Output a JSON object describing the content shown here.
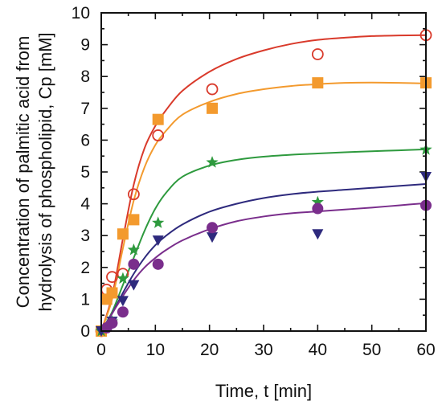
{
  "chart_data": {
    "type": "scatter",
    "title": "",
    "xlabel": "Time, t [min]",
    "ylabel_lines": [
      "Concentration of palmitic acid from",
      "hydrolysis of phospholipid, Cp [mM]"
    ],
    "xlim": [
      0,
      60
    ],
    "ylim": [
      0,
      10
    ],
    "xticks": [
      0,
      10,
      20,
      30,
      40,
      50,
      60
    ],
    "yticks": [
      0,
      1,
      2,
      3,
      4,
      5,
      6,
      7,
      8,
      9,
      10
    ],
    "grid": false,
    "legend": "none",
    "series": [
      {
        "marker": "circle-open",
        "color": "#d93a2b",
        "x": [
          0,
          1,
          2,
          4,
          6,
          10.5,
          20.5,
          40,
          60
        ],
        "y": [
          0,
          1.3,
          1.7,
          1.8,
          4.3,
          6.15,
          7.6,
          8.7,
          9.3
        ],
        "fit_x": [
          0,
          2,
          4,
          6,
          8,
          10,
          12,
          15,
          20,
          25,
          30,
          35,
          40,
          45,
          50,
          55,
          60
        ],
        "fit_y": [
          0,
          1.1,
          2.9,
          4.6,
          5.75,
          6.45,
          6.95,
          7.55,
          8.15,
          8.55,
          8.82,
          9.02,
          9.15,
          9.22,
          9.27,
          9.29,
          9.3
        ]
      },
      {
        "marker": "square",
        "color": "#f39a2e",
        "x": [
          0,
          1,
          2,
          4,
          6,
          10.5,
          20.5,
          40,
          60
        ],
        "y": [
          0,
          1.0,
          1.2,
          3.05,
          3.5,
          6.65,
          7.0,
          7.8,
          7.8
        ],
        "fit_x": [
          0,
          2,
          4,
          6,
          8,
          10,
          12,
          15,
          20,
          25,
          30,
          35,
          40,
          45,
          50,
          55,
          60
        ],
        "fit_y": [
          0,
          1.0,
          2.6,
          4.1,
          5.15,
          5.85,
          6.3,
          6.8,
          7.2,
          7.45,
          7.6,
          7.7,
          7.76,
          7.8,
          7.81,
          7.8,
          7.78
        ]
      },
      {
        "marker": "star",
        "color": "#2e9a3e",
        "x": [
          0,
          2,
          4,
          6,
          10.5,
          20.5,
          40,
          60
        ],
        "y": [
          0,
          0.3,
          1.65,
          2.55,
          3.4,
          5.3,
          4.05,
          5.7
        ],
        "fit_x": [
          0,
          2,
          4,
          6,
          8,
          10,
          12,
          15,
          20,
          25,
          30,
          35,
          40,
          45,
          50,
          55,
          60
        ],
        "fit_y": [
          0,
          0.6,
          1.45,
          2.3,
          3.15,
          3.85,
          4.35,
          4.85,
          5.2,
          5.38,
          5.48,
          5.54,
          5.58,
          5.62,
          5.65,
          5.68,
          5.71
        ]
      },
      {
        "marker": "triangle-down",
        "color": "#2e2a7d",
        "x": [
          0,
          2,
          4,
          6,
          10.5,
          20.5,
          40,
          60
        ],
        "y": [
          0,
          0.3,
          0.95,
          1.45,
          2.85,
          2.95,
          3.05,
          4.85
        ],
        "fit_x": [
          0,
          2,
          4,
          6,
          8,
          10,
          12,
          15,
          20,
          25,
          30,
          35,
          40,
          45,
          50,
          55,
          60
        ],
        "fit_y": [
          0,
          0.55,
          1.2,
          1.8,
          2.3,
          2.7,
          3.0,
          3.35,
          3.75,
          4.0,
          4.18,
          4.3,
          4.38,
          4.44,
          4.5,
          4.56,
          4.62
        ]
      },
      {
        "marker": "circle-filled",
        "color": "#7a2e8c",
        "x": [
          1,
          2,
          4,
          6,
          10.5,
          20.5,
          40,
          60
        ],
        "y": [
          0.1,
          0.25,
          0.6,
          2.1,
          2.1,
          3.25,
          3.85,
          3.95
        ],
        "fit_x": [
          0,
          2,
          4,
          6,
          8,
          10,
          12,
          15,
          20,
          25,
          30,
          35,
          40,
          45,
          50,
          55,
          60
        ],
        "fit_y": [
          0,
          0.55,
          1.1,
          1.6,
          2.0,
          2.3,
          2.55,
          2.85,
          3.2,
          3.45,
          3.6,
          3.7,
          3.76,
          3.82,
          3.88,
          3.95,
          4.02
        ]
      }
    ]
  }
}
